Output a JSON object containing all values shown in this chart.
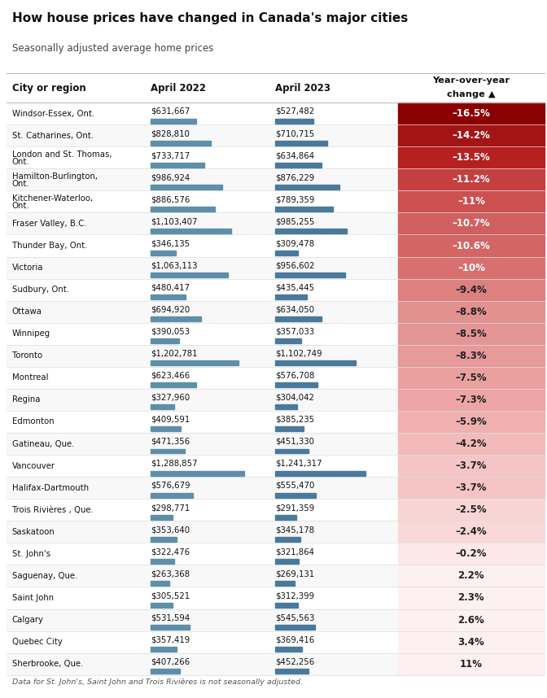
{
  "title": "How house prices have changed in Canada's major cities",
  "subtitle": "Seasonally adjusted average home prices",
  "footer": "Data for St. John's, Saint John and Trois Rivières is not seasonally adjusted.",
  "col_city": "City or region",
  "col_2022": "April 2022",
  "col_2023": "April 2023",
  "bar_color_2022": "#5e8fa8",
  "bar_color_2023": "#4a7a9b",
  "bar_max_value": 1400000,
  "bg_color": "#ffffff",
  "pct_colors": [
    [
      -16.5,
      "#8b0000"
    ],
    [
      -14.2,
      "#a31515"
    ],
    [
      -13.5,
      "#b52020"
    ],
    [
      -11.2,
      "#c44040"
    ],
    [
      -11.0,
      "#cc5050"
    ],
    [
      -10.7,
      "#d06060"
    ],
    [
      -10.6,
      "#d36565"
    ],
    [
      -10.0,
      "#d87070"
    ],
    [
      -9.4,
      "#dd8080"
    ],
    [
      -8.8,
      "#e29090"
    ],
    [
      -8.5,
      "#e49595"
    ],
    [
      -8.3,
      "#e69a9a"
    ],
    [
      -7.5,
      "#eba0a0"
    ],
    [
      -7.3,
      "#eda5a5"
    ],
    [
      -5.9,
      "#f0b0b0"
    ],
    [
      -4.2,
      "#f3baba"
    ],
    [
      -3.7,
      "#f5c5c5"
    ],
    [
      -2.5,
      "#f8d5d5"
    ],
    [
      -2.4,
      "#f9d8d8"
    ],
    [
      -0.2,
      "#fce8e8"
    ],
    [
      2.2,
      "#fdf0f0"
    ],
    [
      2.3,
      "#fdf0f0"
    ],
    [
      2.6,
      "#fdf0f0"
    ],
    [
      3.4,
      "#fdf0f0"
    ],
    [
      11.0,
      "#fdf0f0"
    ]
  ],
  "rows": [
    {
      "city": "Windsor-Essex, Ont.",
      "apr2022": 631667,
      "apr2023": 527482,
      "pct": -16.5,
      "two_line": false
    },
    {
      "city": "St. Catharines, Ont.",
      "apr2022": 828810,
      "apr2023": 710715,
      "pct": -14.2,
      "two_line": false
    },
    {
      "city": "London and St. Thomas,\nOnt.",
      "apr2022": 733717,
      "apr2023": 634864,
      "pct": -13.5,
      "two_line": true
    },
    {
      "city": "Hamilton-Burlington,\nOnt.",
      "apr2022": 986924,
      "apr2023": 876229,
      "pct": -11.2,
      "two_line": true
    },
    {
      "city": "Kitchener-Waterloo,\nOnt.",
      "apr2022": 886576,
      "apr2023": 789359,
      "pct": -11.0,
      "two_line": true
    },
    {
      "city": "Fraser Valley, B.C.",
      "apr2022": 1103407,
      "apr2023": 985255,
      "pct": -10.7,
      "two_line": false
    },
    {
      "city": "Thunder Bay, Ont.",
      "apr2022": 346135,
      "apr2023": 309478,
      "pct": -10.6,
      "two_line": false
    },
    {
      "city": "Victoria",
      "apr2022": 1063113,
      "apr2023": 956602,
      "pct": -10.0,
      "two_line": false
    },
    {
      "city": "Sudbury, Ont.",
      "apr2022": 480417,
      "apr2023": 435445,
      "pct": -9.4,
      "two_line": false
    },
    {
      "city": "Ottawa",
      "apr2022": 694920,
      "apr2023": 634050,
      "pct": -8.8,
      "two_line": false
    },
    {
      "city": "Winnipeg",
      "apr2022": 390053,
      "apr2023": 357033,
      "pct": -8.5,
      "two_line": false
    },
    {
      "city": "Toronto",
      "apr2022": 1202781,
      "apr2023": 1102749,
      "pct": -8.3,
      "two_line": false
    },
    {
      "city": "Montreal",
      "apr2022": 623466,
      "apr2023": 576708,
      "pct": -7.5,
      "two_line": false
    },
    {
      "city": "Regina",
      "apr2022": 327960,
      "apr2023": 304042,
      "pct": -7.3,
      "two_line": false
    },
    {
      "city": "Edmonton",
      "apr2022": 409591,
      "apr2023": 385235,
      "pct": -5.9,
      "two_line": false
    },
    {
      "city": "Gatineau, Que.",
      "apr2022": 471356,
      "apr2023": 451330,
      "pct": -4.2,
      "two_line": false
    },
    {
      "city": "Vancouver",
      "apr2022": 1288857,
      "apr2023": 1241317,
      "pct": -3.7,
      "two_line": false
    },
    {
      "city": "Halifax-Dartmouth",
      "apr2022": 576679,
      "apr2023": 555470,
      "pct": -3.7,
      "two_line": false
    },
    {
      "city": "Trois Rivières , Que.",
      "apr2022": 298771,
      "apr2023": 291359,
      "pct": -2.5,
      "two_line": false
    },
    {
      "city": "Saskatoon",
      "apr2022": 353640,
      "apr2023": 345178,
      "pct": -2.4,
      "two_line": false
    },
    {
      "city": "St. John's",
      "apr2022": 322476,
      "apr2023": 321864,
      "pct": -0.2,
      "two_line": false
    },
    {
      "city": "Saguenay, Que.",
      "apr2022": 263368,
      "apr2023": 269131,
      "pct": 2.2,
      "two_line": false
    },
    {
      "city": "Saint John",
      "apr2022": 305521,
      "apr2023": 312399,
      "pct": 2.3,
      "two_line": false
    },
    {
      "city": "Calgary",
      "apr2022": 531594,
      "apr2023": 545563,
      "pct": 2.6,
      "two_line": false
    },
    {
      "city": "Quebec City",
      "apr2022": 357419,
      "apr2023": 369416,
      "pct": 3.4,
      "two_line": false
    },
    {
      "city": "Sherbrooke, Que.",
      "apr2022": 407266,
      "apr2023": 452256,
      "pct": 11.0,
      "two_line": false
    }
  ]
}
